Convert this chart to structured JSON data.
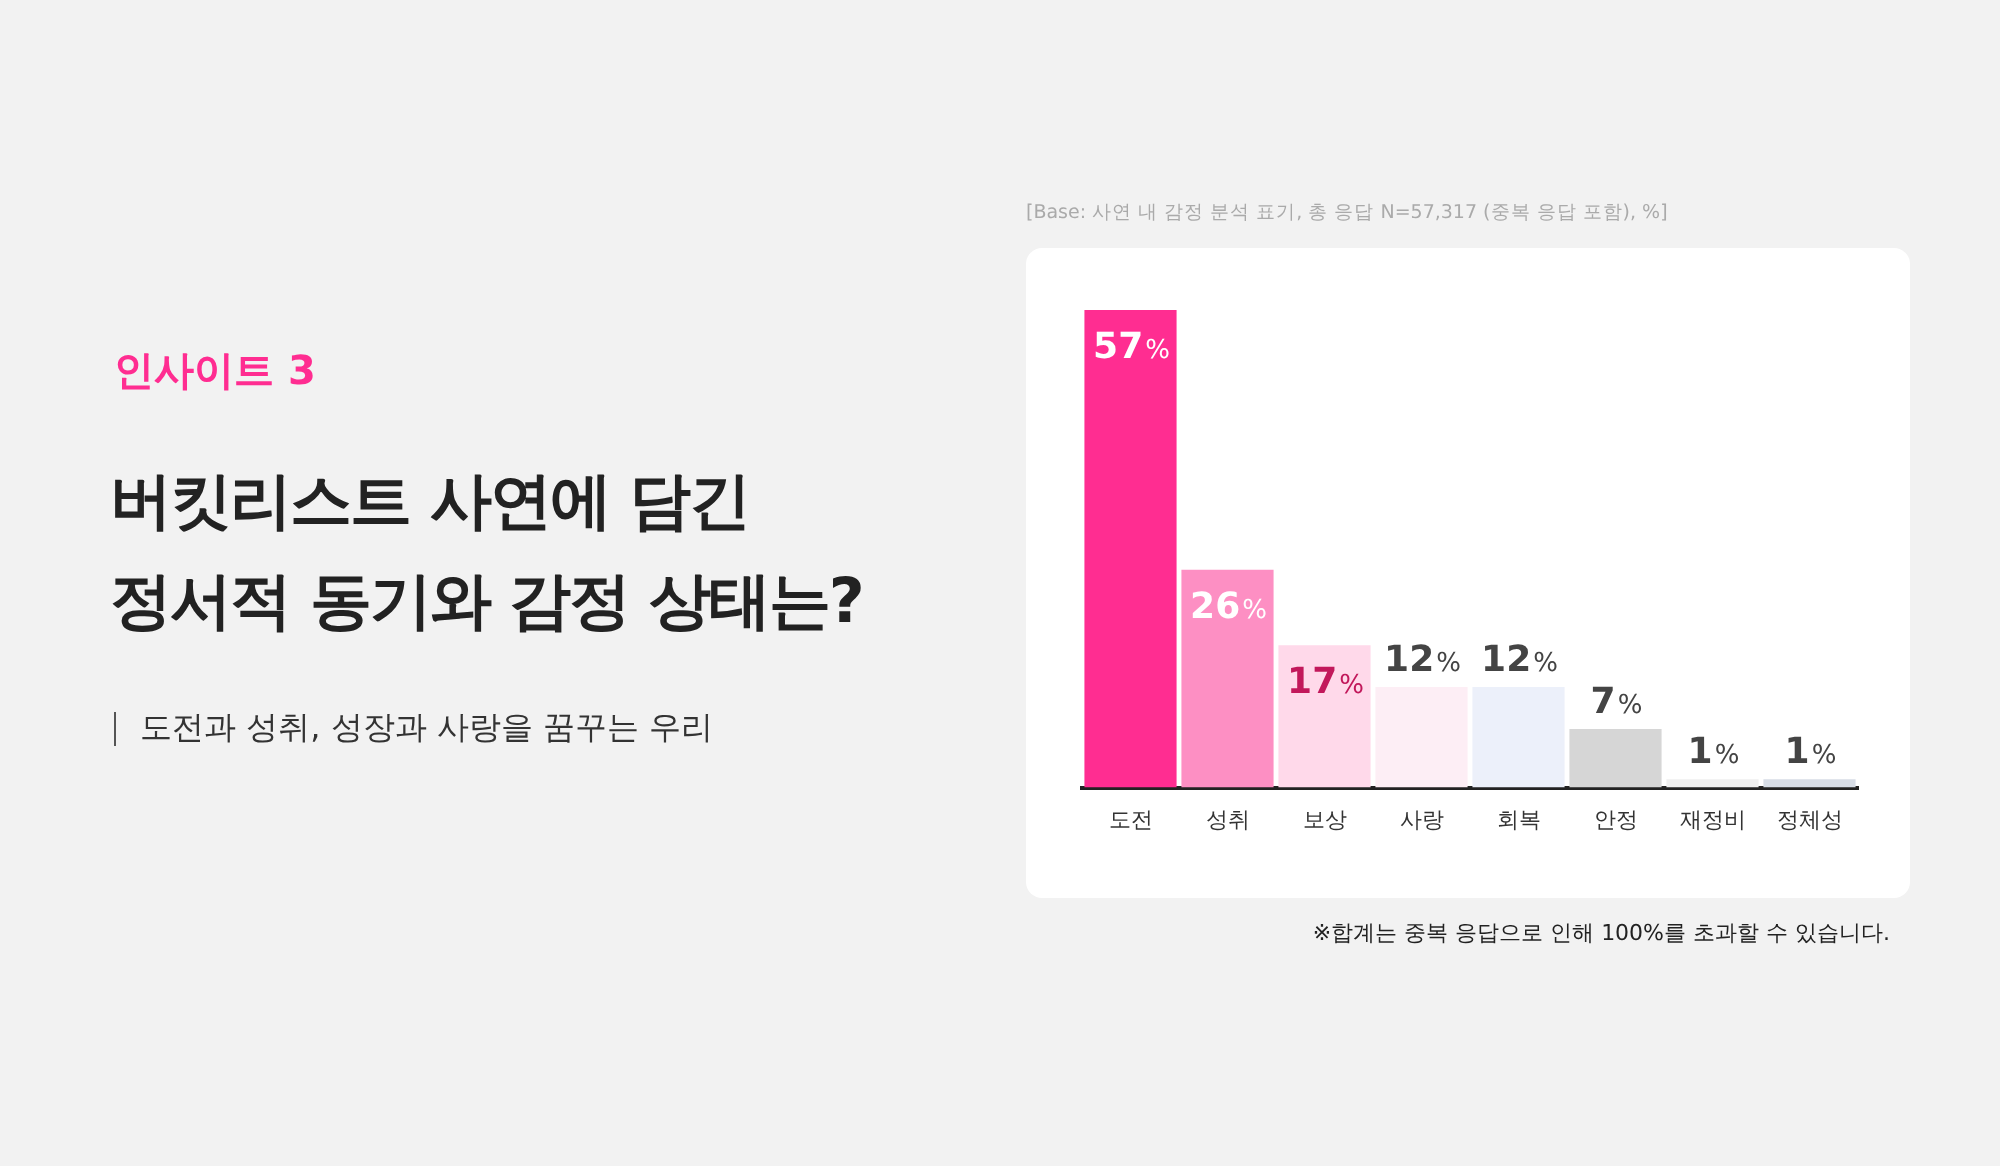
{
  "chart_data": {
    "type": "bar",
    "title": "버킷리스트 사연에 담긴\n정서적 동기와 감정 상태는?",
    "subtitle": "도전과 성취, 성장과 사랑을 꿈꾸는 우리",
    "annotations": [
      "인사이트 3",
      "[Base: 사연 내 감정 분석 표기, 총 응답 N=57,317 (중복 응답 포함), %]",
      "※합계는 중복 응답으로 인해 100%를 초과할 수 있습니다."
    ],
    "categories": [
      "도전",
      "성취",
      "보상",
      "사랑",
      "회복",
      "안정",
      "재정비",
      "정체성"
    ],
    "values": [
      57,
      26,
      17,
      12,
      12,
      7,
      1,
      1
    ],
    "value_labels": [
      "57%",
      "26%",
      "17%",
      "12%",
      "12%",
      "7%",
      "1%",
      "1%"
    ],
    "colors": [
      "#ff2d91",
      "#fd8fc3",
      "#ffd9ea",
      "#fdeef5",
      "#ecf0fa",
      "#d6d6d6",
      "#efefef",
      "#d7dde6"
    ],
    "grid": false,
    "legend": false
  }
}
